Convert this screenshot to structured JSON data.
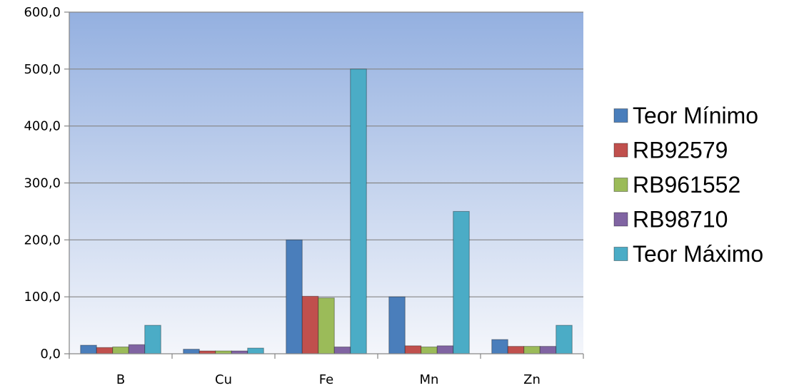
{
  "chart_data": {
    "type": "bar",
    "categories": [
      "B",
      "Cu",
      "Fe",
      "Mn",
      "Zn"
    ],
    "series": [
      {
        "name": "Teor Mínimo",
        "color": "#4a7ebb",
        "values": [
          15,
          8,
          200,
          100,
          25
        ]
      },
      {
        "name": "RB92579",
        "color": "#c0504d",
        "values": [
          11,
          5,
          101,
          14,
          13
        ]
      },
      {
        "name": "RB961552",
        "color": "#9bbb59",
        "values": [
          12,
          5,
          98,
          12,
          13
        ]
      },
      {
        "name": "RB98710",
        "color": "#8064a2",
        "values": [
          16,
          5,
          12,
          14,
          13
        ]
      },
      {
        "name": "Teor Máximo",
        "color": "#4bacc6",
        "values": [
          50,
          10,
          500,
          250,
          50
        ]
      }
    ],
    "ylim": [
      0,
      600
    ],
    "yticks": [
      "0,0",
      "100,0",
      "200,0",
      "300,0",
      "400,0",
      "500,0",
      "600,0"
    ],
    "grid": true,
    "legend_position": "right",
    "plot_background": [
      "#94b0e0",
      "#f4f6fb"
    ]
  }
}
